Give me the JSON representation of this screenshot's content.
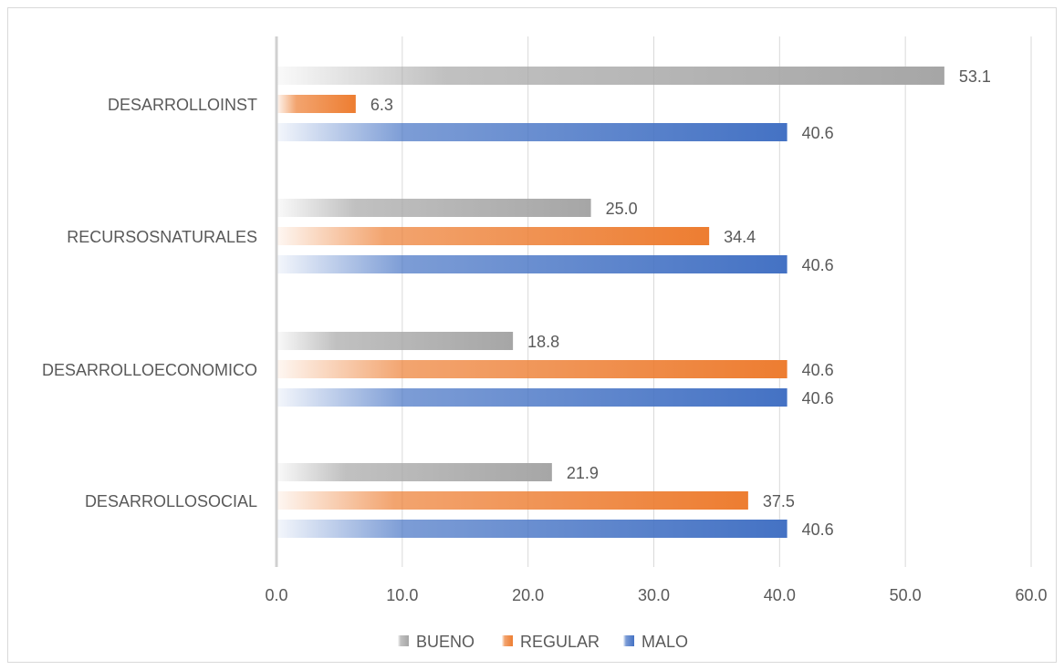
{
  "chart_data": {
    "type": "bar",
    "orientation": "horizontal",
    "title": "",
    "xlabel": "",
    "ylabel": "",
    "categories": [
      "DESARROLLOINST",
      "RECURSOSNATURALES",
      "DESARROLLOECONOMICO",
      "DESARROLLOSOCIAL"
    ],
    "series": [
      {
        "name": "BUENO",
        "color": "#a6a6a6",
        "values": [
          53.1,
          25.0,
          18.8,
          21.9
        ]
      },
      {
        "name": "REGULAR",
        "color": "#ed7d31",
        "values": [
          6.3,
          34.4,
          40.6,
          37.5
        ]
      },
      {
        "name": "MALO",
        "color": "#4472c4",
        "values": [
          40.6,
          40.6,
          40.6,
          40.6
        ]
      }
    ],
    "xlim": [
      0,
      60
    ],
    "xticks": [
      "0.0",
      "10.0",
      "20.0",
      "30.0",
      "40.0",
      "50.0",
      "60.0"
    ],
    "grid": "vertical",
    "legend": "bottom"
  }
}
